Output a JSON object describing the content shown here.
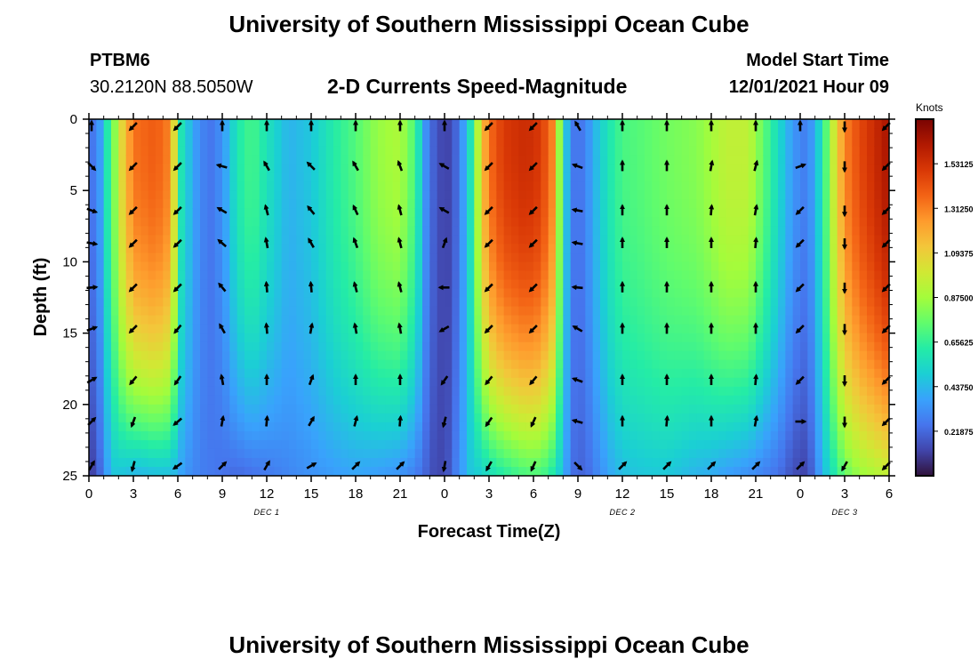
{
  "page": {
    "title": "University of Southern Mississippi Ocean Cube",
    "station_id": "PTBM6",
    "station_coords": "30.2120N  88.5050W",
    "subtitle": "2-D Currents Speed-Magnitude",
    "model_start_label": "Model Start Time",
    "model_start_value": "12/01/2021 Hour 09",
    "bottom_title": "University of Southern Mississippi Ocean Cube"
  },
  "chart_data": {
    "type": "heatmap",
    "title": "2-D Currents Speed-Magnitude",
    "xlabel": "Forecast Time(Z)",
    "ylabel": "Depth (ft)",
    "x_hours_from_dec1_00z": {
      "start": 0,
      "end": 54
    },
    "x_tick_hours": [
      0,
      3,
      6,
      9,
      12,
      15,
      18,
      21,
      24,
      27,
      30,
      33,
      36,
      39,
      42,
      45,
      48,
      51,
      54
    ],
    "x_tick_labels": [
      "0",
      "3",
      "6",
      "9",
      "12",
      "15",
      "18",
      "21",
      "0",
      "3",
      "6",
      "9",
      "12",
      "15",
      "18",
      "21",
      "0",
      "3",
      "6"
    ],
    "day_labels": [
      {
        "hour": 12,
        "text": "DEC 1"
      },
      {
        "hour": 36,
        "text": "DEC 2"
      },
      {
        "hour": 51,
        "text": "DEC 3"
      }
    ],
    "y_ticks": [
      0,
      5,
      10,
      15,
      20,
      25
    ],
    "y_tick_labels": [
      "0",
      "5",
      "10",
      "15",
      "20",
      "25"
    ],
    "ylim": [
      0,
      25
    ],
    "y_inverted": true,
    "colorbar": {
      "label": "Knots",
      "min": 0.0,
      "max": 1.75,
      "ticks": [
        0.21875,
        0.4375,
        0.65625,
        0.875,
        1.09375,
        1.3125,
        1.53125
      ],
      "tick_labels": [
        "0.21875",
        "0.43750",
        "0.65625",
        "0.87500",
        "1.09375",
        "1.31250",
        "1.53125"
      ],
      "colors": [
        "#30123b",
        "#4145ab",
        "#4675ed",
        "#39a2fc",
        "#1bcfd4",
        "#24eca6",
        "#61fc6c",
        "#a4fc3b",
        "#d1e834",
        "#f3c63a",
        "#fe9b2d",
        "#f36315",
        "#d93806",
        "#b11901",
        "#7a0402"
      ]
    },
    "speed_profile": {
      "hours": [
        0,
        0.5,
        1,
        1.8,
        2.5,
        3.2,
        4.5,
        5.5,
        6.2,
        6.8,
        7.5,
        8.4,
        9.2,
        10,
        11,
        12,
        13.5,
        15,
        16.5,
        18,
        19.5,
        21,
        22,
        22.8,
        23.5,
        24.2,
        25,
        25.8,
        26.5,
        27,
        28,
        29.5,
        30.5,
        31.3,
        32,
        32.5,
        33,
        33.8,
        34.5,
        35.3,
        36,
        37,
        38,
        39,
        40,
        41,
        42,
        43,
        44.5,
        45.5,
        46.5,
        47,
        47.5,
        48.2,
        48.8,
        49.5,
        50.3,
        51,
        52,
        53,
        54
      ],
      "surface_knots": [
        0.3,
        0.22,
        0.5,
        0.85,
        1.2,
        1.35,
        1.4,
        1.3,
        0.6,
        0.45,
        0.3,
        0.25,
        0.38,
        0.6,
        0.7,
        0.58,
        0.42,
        0.48,
        0.62,
        0.72,
        0.85,
        0.9,
        0.7,
        0.3,
        0.15,
        0.12,
        0.25,
        0.6,
        1.1,
        1.35,
        1.5,
        1.55,
        1.5,
        1.3,
        0.6,
        0.3,
        0.22,
        0.35,
        0.5,
        0.62,
        0.7,
        0.72,
        0.75,
        0.78,
        0.8,
        0.82,
        0.88,
        0.95,
        0.95,
        0.75,
        0.55,
        0.45,
        0.35,
        0.28,
        0.35,
        0.6,
        1.0,
        1.3,
        1.45,
        1.55,
        1.65
      ],
      "bottom_knots": [
        0.12,
        0.12,
        0.32,
        0.48,
        0.45,
        0.42,
        0.45,
        0.45,
        0.38,
        0.32,
        0.28,
        0.26,
        0.24,
        0.22,
        0.24,
        0.26,
        0.3,
        0.33,
        0.36,
        0.38,
        0.36,
        0.33,
        0.28,
        0.2,
        0.12,
        0.16,
        0.33,
        0.48,
        0.5,
        0.55,
        0.62,
        0.7,
        0.7,
        0.6,
        0.45,
        0.26,
        0.2,
        0.24,
        0.32,
        0.4,
        0.45,
        0.47,
        0.48,
        0.48,
        0.45,
        0.42,
        0.4,
        0.36,
        0.32,
        0.28,
        0.24,
        0.2,
        0.15,
        0.12,
        0.2,
        0.42,
        0.6,
        0.75,
        0.85,
        0.9,
        0.95
      ]
    },
    "vector_depths_ft": [
      0.5,
      3.3,
      6.4,
      8.7,
      11.8,
      14.7,
      18.3,
      21.2,
      24.3
    ],
    "vectors": [
      {
        "hour": 0,
        "angles_deg": [
          0,
          135,
          110,
          100,
          85,
          70,
          60,
          45,
          30
        ]
      },
      {
        "hour": 3,
        "angles_deg": [
          225,
          225,
          225,
          225,
          225,
          225,
          220,
          200,
          195
        ]
      },
      {
        "hour": 6,
        "angles_deg": [
          225,
          225,
          225,
          225,
          225,
          220,
          215,
          230,
          235
        ]
      },
      {
        "hour": 9,
        "angles_deg": [
          0,
          285,
          300,
          310,
          320,
          330,
          350,
          10,
          45
        ]
      },
      {
        "hour": 12,
        "angles_deg": [
          0,
          330,
          345,
          350,
          355,
          355,
          0,
          5,
          30
        ]
      },
      {
        "hour": 15,
        "angles_deg": [
          0,
          315,
          320,
          330,
          355,
          10,
          20,
          30,
          60
        ]
      },
      {
        "hour": 18,
        "angles_deg": [
          0,
          330,
          335,
          340,
          345,
          350,
          0,
          15,
          45
        ]
      },
      {
        "hour": 21,
        "angles_deg": [
          0,
          340,
          345,
          345,
          345,
          350,
          0,
          5,
          45
        ]
      },
      {
        "hour": 24,
        "angles_deg": [
          0,
          300,
          300,
          20,
          270,
          240,
          215,
          195,
          190
        ]
      },
      {
        "hour": 27,
        "angles_deg": [
          225,
          225,
          225,
          225,
          225,
          225,
          220,
          215,
          210
        ]
      },
      {
        "hour": 30,
        "angles_deg": [
          225,
          225,
          225,
          225,
          225,
          225,
          220,
          205,
          205
        ]
      },
      {
        "hour": 33,
        "angles_deg": [
          330,
          290,
          280,
          280,
          275,
          300,
          290,
          285,
          135
        ]
      },
      {
        "hour": 36,
        "angles_deg": [
          0,
          0,
          0,
          0,
          0,
          0,
          0,
          0,
          45
        ]
      },
      {
        "hour": 39,
        "angles_deg": [
          0,
          0,
          0,
          0,
          0,
          0,
          0,
          5,
          45
        ]
      },
      {
        "hour": 42,
        "angles_deg": [
          0,
          10,
          5,
          0,
          0,
          0,
          0,
          0,
          45
        ]
      },
      {
        "hour": 45,
        "angles_deg": [
          0,
          15,
          10,
          5,
          0,
          0,
          5,
          10,
          45
        ]
      },
      {
        "hour": 48,
        "angles_deg": [
          0,
          70,
          225,
          225,
          225,
          225,
          225,
          90,
          45
        ]
      },
      {
        "hour": 51,
        "angles_deg": [
          180,
          180,
          180,
          180,
          180,
          180,
          180,
          180,
          210
        ]
      },
      {
        "hour": 54,
        "angles_deg": [
          225,
          225,
          225,
          225,
          225,
          225,
          225,
          225,
          225
        ]
      }
    ]
  }
}
